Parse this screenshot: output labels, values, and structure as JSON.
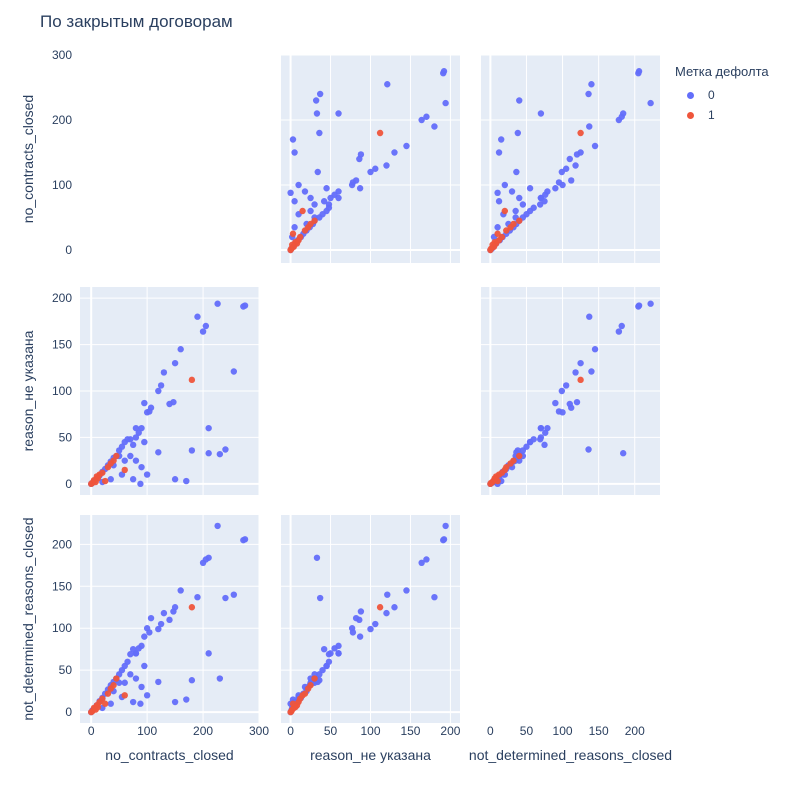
{
  "chart_data": {
    "type": "scatter",
    "title": "По закрытым договорам",
    "dimensions": [
      "no_contracts_closed",
      "reason_не указана",
      "not_determined_reasons_closed"
    ],
    "axis_ticks": {
      "no_contracts_closed": [
        0,
        100,
        200,
        300
      ],
      "reason_не указана": [
        0,
        50,
        100,
        150,
        200
      ],
      "not_determined_reasons_closed": [
        0,
        50,
        100,
        150,
        200
      ]
    },
    "axis_ranges": {
      "no_contracts_closed": [
        -20,
        300
      ],
      "reason_не указана": [
        -12,
        212
      ],
      "not_determined_reasons_closed": [
        -13,
        235
      ]
    },
    "diagonal_visible": false,
    "grid": true,
    "legend": {
      "title": "Метка дефолта",
      "position": "top-right"
    },
    "series": [
      {
        "name": "0",
        "color": "#636efa",
        "points": [
          [
            272,
            191,
            205
          ],
          [
            275,
            192,
            206
          ],
          [
            255,
            121,
            140
          ],
          [
            240,
            37,
            136
          ],
          [
            226,
            194,
            222
          ],
          [
            210,
            33,
            184
          ],
          [
            205,
            170,
            182
          ],
          [
            200,
            164,
            178
          ],
          [
            190,
            180,
            137
          ],
          [
            180,
            36,
            38
          ],
          [
            160,
            145,
            145
          ],
          [
            150,
            130,
            125
          ],
          [
            147,
            88,
            120
          ],
          [
            140,
            86,
            110
          ],
          [
            125,
            106,
            105
          ],
          [
            120,
            100,
            99
          ],
          [
            107,
            82,
            112
          ],
          [
            104,
            78,
            95
          ],
          [
            100,
            77,
            100
          ],
          [
            95,
            87,
            90
          ],
          [
            90,
            60,
            79
          ],
          [
            85,
            55,
            76
          ],
          [
            80,
            50,
            70
          ],
          [
            75,
            42,
            75
          ],
          [
            70,
            48,
            69
          ],
          [
            65,
            48,
            60
          ],
          [
            60,
            45,
            55
          ],
          [
            55,
            40,
            50
          ],
          [
            50,
            36,
            45
          ],
          [
            45,
            30,
            40
          ],
          [
            40,
            28,
            36
          ],
          [
            35,
            24,
            32
          ],
          [
            30,
            20,
            27
          ],
          [
            25,
            16,
            22
          ],
          [
            20,
            13,
            17
          ],
          [
            15,
            9,
            13
          ],
          [
            10,
            6,
            8
          ],
          [
            5,
            3,
            4
          ],
          [
            2,
            1,
            2
          ],
          [
            0,
            0,
            0
          ],
          [
            70,
            30,
            45
          ],
          [
            80,
            25,
            40
          ],
          [
            90,
            18,
            30
          ],
          [
            100,
            10,
            20
          ],
          [
            120,
            34,
            36
          ],
          [
            60,
            25,
            35
          ],
          [
            50,
            30,
            35
          ],
          [
            40,
            20,
            25
          ],
          [
            80,
            60,
            70
          ],
          [
            95,
            45,
            55
          ],
          [
            150,
            5,
            12
          ],
          [
            170,
            3,
            15
          ],
          [
            210,
            60,
            70
          ],
          [
            230,
            32,
            40
          ],
          [
            88,
            0,
            10
          ],
          [
            75,
            5,
            12
          ],
          [
            55,
            10,
            18
          ],
          [
            35,
            5,
            10
          ],
          [
            20,
            2,
            5
          ],
          [
            130,
            120,
            118
          ]
        ]
      },
      {
        "name": "1",
        "color": "#ef553b",
        "points": [
          [
            180,
            112,
            125
          ],
          [
            45,
            30,
            40
          ],
          [
            40,
            25,
            32
          ],
          [
            35,
            22,
            28
          ],
          [
            20,
            12,
            16
          ],
          [
            15,
            10,
            12
          ],
          [
            10,
            8,
            8
          ],
          [
            5,
            4,
            5
          ],
          [
            2,
            1,
            1
          ],
          [
            0,
            0,
            0
          ],
          [
            60,
            15,
            20
          ],
          [
            25,
            3,
            10
          ],
          [
            30,
            18,
            22
          ],
          [
            12,
            6,
            6
          ],
          [
            8,
            2,
            3
          ]
        ]
      }
    ]
  }
}
